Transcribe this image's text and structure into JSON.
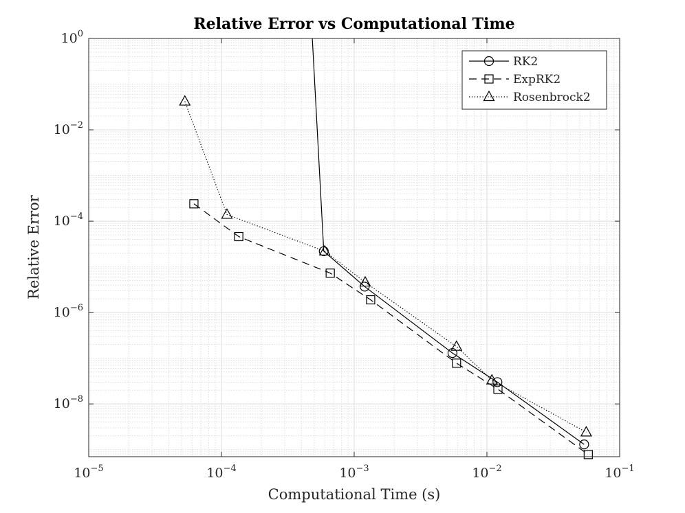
{
  "chart_data": {
    "type": "line",
    "title": "Relative Error vs Computational Time",
    "xlabel": "Computational Time (s)",
    "ylabel": "Relative Error",
    "x_scale": "log",
    "y_scale": "log",
    "xlim": [
      1e-05,
      0.1
    ],
    "ylim": [
      7e-10,
      1
    ],
    "grid": true,
    "minor_grid": true,
    "legend_position": "top-right",
    "x_ticks": [
      {
        "base": "10",
        "exp": "−5",
        "value": 1e-05
      },
      {
        "base": "10",
        "exp": "−4",
        "value": 0.0001
      },
      {
        "base": "10",
        "exp": "−3",
        "value": 0.001
      },
      {
        "base": "10",
        "exp": "−2",
        "value": 0.01
      },
      {
        "base": "10",
        "exp": "−1",
        "value": 0.1
      }
    ],
    "y_ticks": [
      {
        "base": "10",
        "exp": "0",
        "value": 1
      },
      {
        "base": "10",
        "exp": "−2",
        "value": 0.01
      },
      {
        "base": "10",
        "exp": "−4",
        "value": 0.0001
      },
      {
        "base": "10",
        "exp": "−6",
        "value": 1e-06
      },
      {
        "base": "10",
        "exp": "−8",
        "value": 1e-08
      }
    ],
    "series": [
      {
        "name": "RK2",
        "marker": "circle",
        "line_style": "solid",
        "color": "#000000",
        "x": [
          0.00048,
          0.00059,
          0.0012,
          0.0055,
          0.012,
          0.054
        ],
        "y": [
          1.5,
          2.2e-05,
          3.7e-06,
          1.3e-07,
          3e-08,
          1.3e-09
        ]
      },
      {
        "name": "ExpRK2",
        "marker": "square",
        "line_style": "dashed",
        "color": "#000000",
        "x": [
          6.2e-05,
          0.000135,
          0.00066,
          0.00133,
          0.0059,
          0.0121,
          0.058
        ],
        "y": [
          0.00024,
          4.6e-05,
          7.3e-06,
          1.9e-06,
          7.8e-08,
          2.1e-08,
          7.8e-10
        ]
      },
      {
        "name": "Rosenbrock2",
        "marker": "triangle",
        "line_style": "dotted",
        "color": "#000000",
        "x": [
          5.3e-05,
          0.00011,
          0.0006,
          0.00121,
          0.0059,
          0.0109,
          0.056
        ],
        "y": [
          0.042,
          0.00014,
          2.2e-05,
          4.6e-06,
          1.8e-07,
          3.3e-08,
          2.4e-09
        ]
      }
    ]
  }
}
